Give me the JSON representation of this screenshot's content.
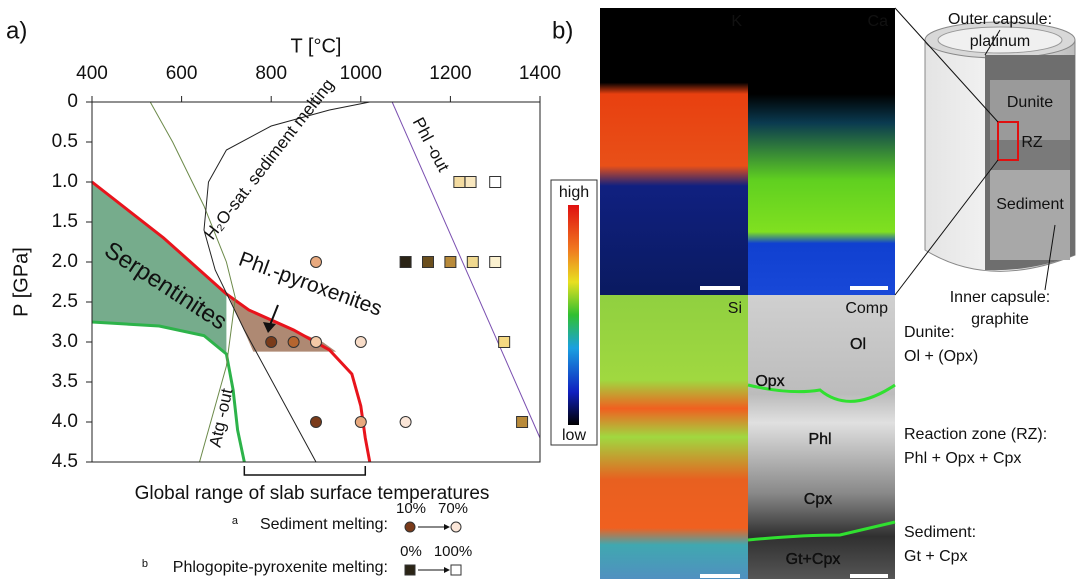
{
  "panel_labels": {
    "a": "a)",
    "b": "b)"
  },
  "chart_data": {
    "type": "scatter",
    "xlabel": "T [°C]",
    "ylabel": "P [GPa]",
    "xlim": [
      400,
      1400
    ],
    "ylim": [
      0,
      4.5
    ],
    "invert_y": true,
    "xticks": [
      400,
      600,
      800,
      1000,
      1200,
      1400
    ],
    "yticks": [
      0,
      0.5,
      {
        "value": 1,
        "label": "1.0"
      },
      1.5,
      {
        "value": 2,
        "label": "2.0"
      },
      2.5,
      {
        "value": 3,
        "label": "3.0"
      },
      3.5,
      {
        "value": 4,
        "label": "4.0"
      },
      4.5
    ],
    "series": [
      {
        "name": "Sediment melting:",
        "note": "a",
        "marker": "circle",
        "legend_low": "10%",
        "legend_high": "70%",
        "x": [
          900,
          800,
          850,
          900,
          1000,
          900,
          1000,
          1100
        ],
        "y": [
          2,
          3,
          3,
          3,
          3,
          4,
          4,
          4
        ],
        "colors": [
          "#e8a97e",
          "#7a3b1a",
          "#b5652f",
          "#f3c9a6",
          "#f8dcc8",
          "#7a3b1a",
          "#e8a97e",
          "#fbe6d8"
        ]
      },
      {
        "name": "Phlogopite-pyroxenite melting:",
        "note": "b",
        "marker": "square",
        "legend_low": "0%",
        "legend_high": "100%",
        "x": [
          1220,
          1245,
          1300,
          1100,
          1150,
          1200,
          1250,
          1300,
          1320,
          1360
        ],
        "y": [
          1,
          1,
          1,
          2,
          2,
          2,
          2,
          2,
          3,
          4
        ],
        "colors": [
          "#f3dba0",
          "#f8e7bf",
          "#ffffff",
          "#2b2416",
          "#6b4f1e",
          "#b88a3a",
          "#f0d990",
          "#fbf1d0",
          "#f5d982",
          "#b88a3a"
        ]
      }
    ],
    "regions": [
      {
        "label": "Serpentinites",
        "color": "#5e9e78",
        "x": [
          400,
          560,
          700,
          700,
          650,
          550,
          400
        ],
        "y": [
          1.0,
          1.7,
          2.4,
          3.15,
          2.92,
          2.8,
          2.75
        ]
      },
      {
        "label": "Phl.-pyroxenites",
        "color": "#a0745a",
        "x": [
          705,
          750,
          850,
          915,
          945,
          760
        ],
        "y": [
          2.42,
          2.6,
          2.85,
          3.0,
          3.12,
          3.12
        ]
      }
    ],
    "curves": [
      {
        "color": "#e8141c",
        "width": 3,
        "x": [
          400,
          560,
          700,
          750,
          850,
          930,
          980,
          1000,
          1010,
          1020
        ],
        "y": [
          1.0,
          1.7,
          2.4,
          2.6,
          2.85,
          3.1,
          3.4,
          3.8,
          4.2,
          4.5
        ]
      },
      {
        "label": "Atg -out",
        "color": "#2db34a",
        "width": 3,
        "x": [
          400,
          550,
          650,
          700,
          715,
          725,
          740
        ],
        "y": [
          2.75,
          2.8,
          2.92,
          3.15,
          3.6,
          4.1,
          4.5
        ]
      },
      {
        "color": "#6c8a4a",
        "width": 1,
        "x": [
          530,
          580,
          650,
          700,
          720,
          700,
          640
        ],
        "y": [
          0,
          0.5,
          1.3,
          2.0,
          2.45,
          3.3,
          4.5
        ]
      },
      {
        "label": "H₂O-sat. sediment melting",
        "color": "#222222",
        "width": 1,
        "x": [
          1020,
          930,
          800,
          700,
          660,
          650,
          675,
          740,
          900
        ],
        "y": [
          0,
          0.1,
          0.3,
          0.6,
          1.0,
          1.6,
          2.1,
          2.85,
          4.5
        ]
      },
      {
        "label": "Phl -out",
        "color": "#7a4fb0",
        "width": 1,
        "x": [
          1070,
          1400
        ],
        "y": [
          0,
          4.2
        ]
      }
    ],
    "range_bracket": {
      "label": "Global range of slab surface temperatures",
      "x": [
        740,
        1010
      ]
    }
  },
  "maps": {
    "tiles": [
      "K",
      "Ca",
      "Si",
      "Comp"
    ],
    "colorbar": {
      "high": "high",
      "low": "low"
    },
    "phases": [
      "Ol",
      "Opx",
      "Phl",
      "Cpx",
      "Gt+Cpx"
    ]
  },
  "capsule": {
    "outer": "Outer capsule:\nplatinum",
    "dunite": "Dunite",
    "rz": "RZ",
    "sediment": "Sediment",
    "inner": "Inner capsule:\ngraphite"
  },
  "descriptions": [
    {
      "title": "Dunite:",
      "text": "Ol + (Opx)"
    },
    {
      "title": "Reaction zone (RZ):",
      "text": "Phl + Opx + Cpx"
    },
    {
      "title": "Sediment:",
      "text": "Gt + Cpx"
    }
  ]
}
